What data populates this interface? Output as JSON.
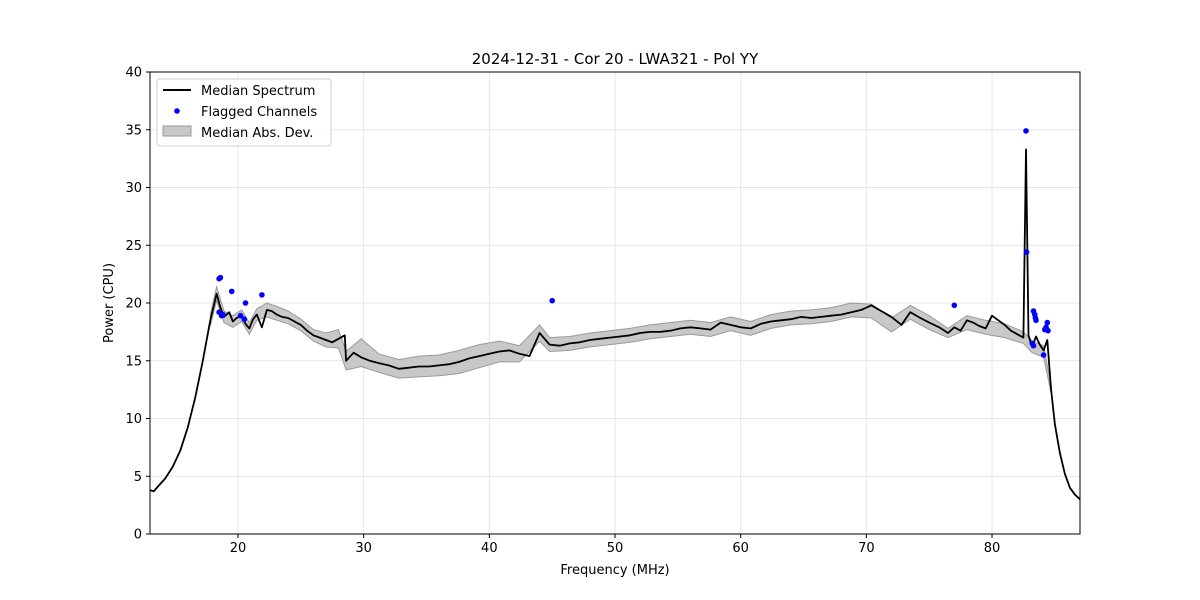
{
  "chart_data": {
    "type": "line",
    "title": "2024-12-31 - Cor 20 - LWA321 - Pol YY",
    "xlabel": "Frequency (MHz)",
    "ylabel": "Power (CPU)",
    "xlim": [
      13,
      87
    ],
    "ylim": [
      0,
      40
    ],
    "xticks": [
      20,
      30,
      40,
      50,
      60,
      70,
      80
    ],
    "yticks": [
      0,
      5,
      10,
      15,
      20,
      25,
      30,
      35,
      40
    ],
    "grid": true,
    "legend": {
      "placement": "top-left",
      "entries": [
        "Median Spectrum",
        "Flagged Channels",
        "Median Abs. Dev."
      ]
    },
    "colors": {
      "median": "#000000",
      "flagged": "#0000ff",
      "mad_fill": "#c8c8c8",
      "mad_edge": "#9a9a9a"
    },
    "series": [
      {
        "name": "Median Spectrum",
        "x": [
          13.0,
          13.3,
          13.7,
          14.2,
          14.8,
          15.4,
          16.0,
          16.6,
          17.2,
          17.8,
          18.3,
          18.6,
          18.9,
          19.3,
          19.6,
          19.9,
          20.3,
          20.6,
          20.9,
          21.2,
          21.5,
          21.9,
          22.3,
          22.7,
          23.1,
          23.5,
          24.0,
          24.5,
          25.0,
          25.5,
          26.0,
          26.5,
          27.0,
          27.5,
          28.0,
          28.5,
          28.6,
          29.2,
          29.8,
          30.5,
          31.2,
          32.0,
          32.8,
          33.6,
          34.4,
          35.2,
          36.0,
          36.8,
          37.6,
          38.4,
          39.2,
          40.0,
          40.8,
          41.6,
          42.4,
          43.2,
          44.0,
          44.8,
          45.6,
          46.4,
          47.2,
          48.0,
          48.8,
          49.6,
          50.4,
          51.2,
          52.0,
          52.8,
          53.6,
          54.4,
          55.2,
          56.0,
          56.8,
          57.6,
          58.4,
          59.2,
          60.0,
          60.8,
          61.6,
          62.4,
          63.2,
          64.0,
          64.8,
          65.6,
          66.4,
          67.2,
          68.0,
          68.8,
          69.6,
          70.4,
          71.2,
          72.0,
          72.8,
          73.5,
          74.3,
          75.0,
          75.8,
          76.5,
          77.0,
          77.5,
          78.0,
          78.5,
          79.0,
          79.5,
          80.0,
          80.5,
          81.0,
          81.5,
          82.0,
          82.5,
          82.7,
          82.9,
          83.2,
          83.5,
          83.8,
          84.1,
          84.4,
          84.7,
          85.0,
          85.4,
          85.8,
          86.2,
          86.6,
          87.0
        ],
        "y": [
          3.8,
          3.7,
          4.2,
          4.8,
          5.8,
          7.2,
          9.2,
          11.8,
          15.0,
          18.5,
          20.8,
          19.6,
          18.8,
          19.2,
          18.4,
          18.7,
          18.9,
          18.2,
          17.8,
          18.6,
          19.0,
          17.9,
          19.4,
          19.3,
          19.0,
          18.8,
          18.7,
          18.4,
          18.1,
          17.6,
          17.2,
          17.0,
          16.8,
          16.6,
          16.9,
          17.2,
          15.0,
          15.7,
          15.3,
          15.0,
          14.8,
          14.6,
          14.3,
          14.4,
          14.5,
          14.5,
          14.6,
          14.7,
          14.9,
          15.2,
          15.4,
          15.6,
          15.8,
          15.9,
          15.6,
          15.4,
          17.4,
          16.4,
          16.3,
          16.5,
          16.6,
          16.8,
          16.9,
          17.0,
          17.1,
          17.2,
          17.4,
          17.5,
          17.5,
          17.6,
          17.8,
          17.9,
          17.8,
          17.7,
          18.3,
          18.1,
          17.9,
          17.8,
          18.2,
          18.4,
          18.5,
          18.6,
          18.8,
          18.7,
          18.8,
          18.9,
          19.0,
          19.2,
          19.4,
          19.8,
          19.3,
          18.8,
          18.1,
          19.2,
          18.7,
          18.3,
          17.9,
          17.4,
          17.9,
          17.6,
          18.5,
          18.3,
          18.0,
          17.8,
          18.9,
          18.5,
          18.1,
          17.6,
          17.3,
          17.0,
          33.3,
          17.2,
          16.2,
          17.1,
          16.4,
          15.9,
          16.8,
          12.5,
          9.5,
          7.0,
          5.2,
          4.0,
          3.4,
          3.0
        ]
      },
      {
        "name": "Median Abs. Dev.",
        "x": [
          17.8,
          18.3,
          18.9,
          19.6,
          20.3,
          20.9,
          21.5,
          22.3,
          23.1,
          24.0,
          25.0,
          26.0,
          27.0,
          28.0,
          28.6,
          29.8,
          31.2,
          32.8,
          34.4,
          36.0,
          37.6,
          39.2,
          40.8,
          42.4,
          44.0,
          44.8,
          46.4,
          48.0,
          49.6,
          51.2,
          52.8,
          54.4,
          56.0,
          57.6,
          59.2,
          60.8,
          62.4,
          64.0,
          65.6,
          67.2,
          68.8,
          70.4,
          72.0,
          73.5,
          75.0,
          76.5,
          78.0,
          79.5,
          81.0,
          82.5,
          83.2,
          84.1,
          84.7
        ],
        "lower": [
          18.0,
          20.2,
          18.3,
          17.9,
          18.4,
          17.3,
          18.5,
          18.8,
          18.5,
          18.2,
          17.6,
          16.7,
          16.2,
          16.1,
          14.2,
          14.5,
          14.0,
          13.5,
          13.6,
          13.7,
          13.9,
          14.4,
          14.9,
          14.9,
          16.7,
          15.8,
          15.9,
          16.2,
          16.4,
          16.6,
          16.9,
          17.1,
          17.3,
          17.1,
          17.6,
          17.2,
          17.8,
          18.1,
          18.2,
          18.4,
          18.8,
          18.7,
          17.5,
          18.6,
          17.7,
          17.0,
          17.7,
          17.3,
          17.0,
          16.5,
          15.7,
          15.3,
          12.2
        ],
        "upper": [
          19.0,
          21.4,
          19.3,
          18.9,
          19.4,
          18.3,
          19.5,
          20.0,
          19.7,
          19.3,
          18.6,
          17.7,
          17.4,
          17.7,
          15.8,
          16.9,
          15.6,
          15.1,
          15.4,
          15.5,
          15.9,
          16.4,
          16.7,
          16.3,
          18.1,
          17.0,
          17.1,
          17.4,
          17.6,
          17.8,
          18.1,
          18.3,
          18.5,
          18.3,
          18.8,
          18.4,
          19.0,
          19.3,
          19.4,
          19.6,
          20.0,
          19.9,
          18.7,
          19.8,
          18.9,
          17.8,
          18.9,
          18.5,
          18.2,
          17.5,
          16.7,
          16.3,
          12.8
        ]
      },
      {
        "name": "Flagged Channels",
        "x": [
          18.5,
          18.6,
          18.5,
          18.7,
          18.8,
          19.5,
          20.2,
          20.6,
          21.9,
          20.5,
          45.0,
          77.0,
          82.7,
          82.75,
          83.3,
          83.4,
          83.45,
          83.5,
          83.2,
          83.3,
          84.2,
          84.3,
          84.4,
          84.45,
          84.1
        ],
        "y": [
          22.1,
          22.2,
          19.2,
          18.9,
          19.0,
          21.0,
          18.9,
          20.0,
          20.7,
          18.6,
          20.2,
          19.8,
          34.9,
          24.4,
          19.3,
          19.0,
          18.7,
          18.5,
          16.5,
          16.3,
          17.7,
          17.9,
          18.3,
          17.6,
          15.5
        ]
      }
    ]
  }
}
